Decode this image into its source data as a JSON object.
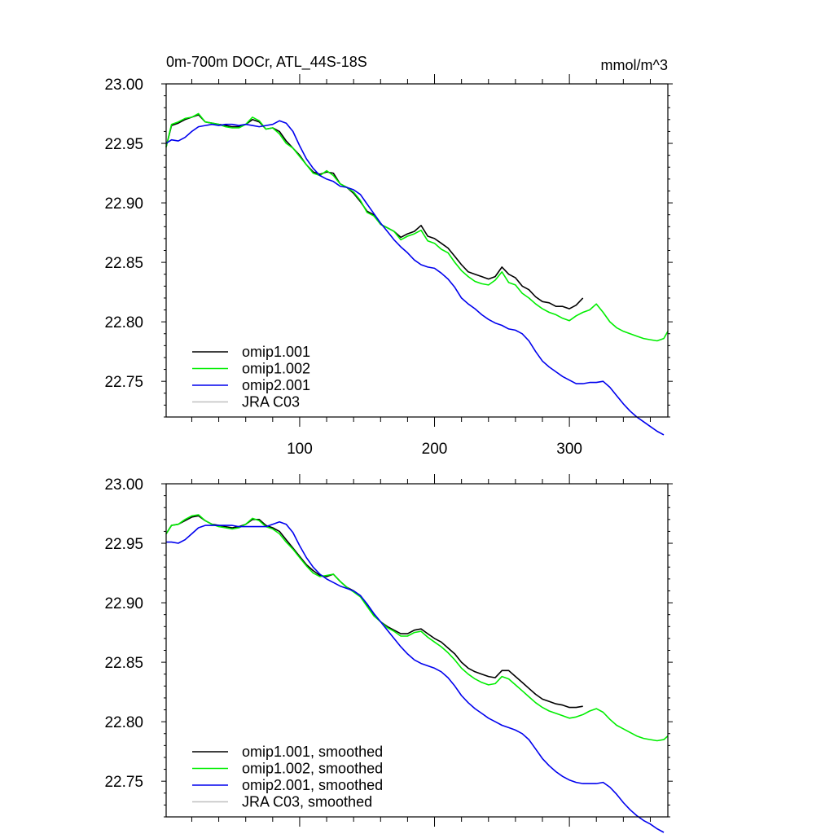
{
  "chart_data": [
    {
      "type": "line",
      "title": "0m-700m DOCr, ATL_44S-18S",
      "units": "mmol/m^3",
      "xlim": [
        1,
        373
      ],
      "ylim": [
        22.72,
        23.0
      ],
      "xticks": [
        100,
        200,
        300
      ],
      "yticks": [
        22.75,
        22.8,
        22.85,
        22.9,
        22.95,
        23.0
      ],
      "ytick_labels": [
        "22.75",
        "22.80",
        "22.85",
        "22.90",
        "22.95",
        "23.00"
      ],
      "xtick_labels": [
        "100",
        "200",
        "300"
      ],
      "legend_position": "bottom-left",
      "series": [
        {
          "name": "omip1.001",
          "color": "#000000",
          "x": [
            1,
            5,
            10,
            15,
            20,
            25,
            30,
            35,
            40,
            45,
            50,
            55,
            60,
            65,
            70,
            75,
            80,
            85,
            90,
            95,
            100,
            105,
            110,
            115,
            120,
            125,
            130,
            135,
            140,
            145,
            150,
            155,
            160,
            165,
            170,
            175,
            180,
            185,
            190,
            195,
            200,
            205,
            210,
            215,
            220,
            225,
            230,
            235,
            240,
            245,
            250,
            255,
            260,
            265,
            270,
            275,
            280,
            285,
            290,
            295,
            300,
            305,
            310
          ],
          "y": [
            22.947,
            22.965,
            22.967,
            22.97,
            22.972,
            22.974,
            22.968,
            22.967,
            22.966,
            22.965,
            22.964,
            22.964,
            22.966,
            22.97,
            22.968,
            22.962,
            22.963,
            22.96,
            22.952,
            22.946,
            22.94,
            22.932,
            22.926,
            22.924,
            22.926,
            22.925,
            22.916,
            22.913,
            22.908,
            22.901,
            22.893,
            22.89,
            22.882,
            22.879,
            22.876,
            22.871,
            22.874,
            22.876,
            22.881,
            22.872,
            22.87,
            22.866,
            22.862,
            22.855,
            22.848,
            22.842,
            22.84,
            22.838,
            22.836,
            22.838,
            22.846,
            22.84,
            22.837,
            22.83,
            22.827,
            22.821,
            22.817,
            22.816,
            22.813,
            22.813,
            22.811,
            22.814,
            22.82
          ]
        },
        {
          "name": "omip1.002",
          "color": "#00ee00",
          "x": [
            1,
            5,
            10,
            15,
            20,
            25,
            30,
            35,
            40,
            45,
            50,
            55,
            60,
            65,
            70,
            75,
            80,
            85,
            90,
            95,
            100,
            105,
            110,
            115,
            120,
            125,
            130,
            135,
            140,
            145,
            150,
            155,
            160,
            165,
            170,
            175,
            180,
            185,
            190,
            195,
            200,
            205,
            210,
            215,
            220,
            225,
            230,
            235,
            240,
            245,
            250,
            255,
            260,
            265,
            270,
            275,
            280,
            285,
            290,
            295,
            300,
            305,
            310,
            315,
            320,
            325,
            330,
            335,
            340,
            345,
            350,
            355,
            360,
            365,
            370,
            373
          ],
          "y": [
            22.947,
            22.966,
            22.968,
            22.971,
            22.972,
            22.975,
            22.968,
            22.967,
            22.966,
            22.964,
            22.963,
            22.963,
            22.966,
            22.972,
            22.969,
            22.962,
            22.963,
            22.958,
            22.95,
            22.946,
            22.939,
            22.932,
            22.925,
            22.923,
            22.927,
            22.923,
            22.916,
            22.913,
            22.909,
            22.902,
            22.892,
            22.889,
            22.882,
            22.879,
            22.876,
            22.869,
            22.872,
            22.874,
            22.877,
            22.868,
            22.866,
            22.861,
            22.858,
            22.85,
            22.843,
            22.838,
            22.834,
            22.832,
            22.831,
            22.835,
            22.842,
            22.833,
            22.831,
            22.824,
            22.82,
            22.815,
            22.811,
            22.808,
            22.806,
            22.803,
            22.801,
            22.805,
            22.808,
            22.81,
            22.815,
            22.808,
            22.8,
            22.795,
            22.792,
            22.79,
            22.788,
            22.786,
            22.785,
            22.784,
            22.786,
            22.792
          ]
        },
        {
          "name": "omip2.001",
          "color": "#0000ee",
          "x": [
            1,
            5,
            10,
            15,
            20,
            25,
            30,
            35,
            40,
            45,
            50,
            55,
            60,
            65,
            70,
            75,
            80,
            85,
            90,
            95,
            100,
            105,
            110,
            115,
            120,
            125,
            130,
            135,
            140,
            145,
            150,
            155,
            160,
            165,
            170,
            175,
            180,
            185,
            190,
            195,
            200,
            205,
            210,
            215,
            220,
            225,
            230,
            235,
            240,
            245,
            250,
            255,
            260,
            265,
            270,
            275,
            280,
            285,
            290,
            295,
            300,
            305,
            310,
            315,
            320,
            325,
            330,
            335,
            340,
            345,
            350,
            355,
            360,
            365,
            370
          ],
          "y": [
            22.95,
            22.953,
            22.952,
            22.955,
            22.96,
            22.964,
            22.965,
            22.966,
            22.965,
            22.966,
            22.966,
            22.965,
            22.966,
            22.965,
            22.964,
            22.965,
            22.966,
            22.969,
            22.967,
            22.96,
            22.948,
            22.937,
            22.929,
            22.923,
            22.92,
            22.918,
            22.914,
            22.913,
            22.911,
            22.907,
            22.899,
            22.891,
            22.883,
            22.876,
            22.869,
            22.863,
            22.858,
            22.852,
            22.848,
            22.846,
            22.845,
            22.841,
            22.836,
            22.829,
            22.82,
            22.815,
            22.811,
            22.806,
            22.802,
            22.799,
            22.797,
            22.794,
            22.793,
            22.79,
            22.784,
            22.775,
            22.767,
            22.762,
            22.758,
            22.754,
            22.751,
            22.748,
            22.748,
            22.749,
            22.749,
            22.75,
            22.745,
            22.738,
            22.731,
            22.725,
            22.72,
            22.716,
            22.712,
            22.708,
            22.705
          ]
        },
        {
          "name": "JRA C03",
          "color": "#c0c0c0",
          "x": [],
          "y": []
        }
      ]
    },
    {
      "type": "line",
      "xlim": [
        1,
        373
      ],
      "ylim": [
        22.72,
        23.0
      ],
      "xticks": [
        100,
        200,
        300
      ],
      "yticks": [
        22.75,
        22.8,
        22.85,
        22.9,
        22.95,
        23.0
      ],
      "ytick_labels": [
        "22.75",
        "22.80",
        "22.85",
        "22.90",
        "22.95",
        "23.00"
      ],
      "legend_position": "bottom-left",
      "series": [
        {
          "name": "omip1.001, smoothed",
          "color": "#000000",
          "x": [
            1,
            5,
            10,
            15,
            20,
            25,
            30,
            35,
            40,
            45,
            50,
            55,
            60,
            65,
            70,
            75,
            80,
            85,
            90,
            95,
            100,
            105,
            110,
            115,
            120,
            125,
            130,
            135,
            140,
            145,
            150,
            155,
            160,
            165,
            170,
            175,
            180,
            185,
            190,
            195,
            200,
            205,
            210,
            215,
            220,
            225,
            230,
            235,
            240,
            245,
            250,
            255,
            260,
            265,
            270,
            275,
            280,
            285,
            290,
            295,
            300,
            305,
            310
          ],
          "y": [
            22.958,
            22.965,
            22.966,
            22.969,
            22.972,
            22.973,
            22.969,
            22.966,
            22.965,
            22.964,
            22.963,
            22.964,
            22.966,
            22.97,
            22.97,
            22.965,
            22.963,
            22.96,
            22.953,
            22.946,
            22.939,
            22.932,
            22.927,
            22.923,
            22.922,
            22.924,
            22.918,
            22.913,
            22.91,
            22.906,
            22.898,
            22.89,
            22.884,
            22.88,
            22.877,
            22.874,
            22.874,
            22.877,
            22.878,
            22.874,
            22.87,
            22.867,
            22.862,
            22.857,
            22.85,
            22.845,
            22.842,
            22.84,
            22.838,
            22.837,
            22.843,
            22.843,
            22.838,
            22.833,
            22.828,
            22.823,
            22.819,
            22.817,
            22.815,
            22.814,
            22.812,
            22.812,
            22.813
          ]
        },
        {
          "name": "omip1.002, smoothed",
          "color": "#00ee00",
          "x": [
            1,
            5,
            10,
            15,
            20,
            25,
            30,
            35,
            40,
            45,
            50,
            55,
            60,
            65,
            70,
            75,
            80,
            85,
            90,
            95,
            100,
            105,
            110,
            115,
            120,
            125,
            130,
            135,
            140,
            145,
            150,
            155,
            160,
            165,
            170,
            175,
            180,
            185,
            190,
            195,
            200,
            205,
            210,
            215,
            220,
            225,
            230,
            235,
            240,
            245,
            250,
            255,
            260,
            265,
            270,
            275,
            280,
            285,
            290,
            295,
            300,
            305,
            310,
            315,
            320,
            325,
            330,
            335,
            340,
            345,
            350,
            355,
            360,
            365,
            370,
            373
          ],
          "y": [
            22.958,
            22.965,
            22.966,
            22.97,
            22.973,
            22.974,
            22.969,
            22.966,
            22.964,
            22.963,
            22.962,
            22.963,
            22.966,
            22.971,
            22.969,
            22.964,
            22.962,
            22.958,
            22.951,
            22.945,
            22.938,
            22.931,
            22.925,
            22.922,
            22.923,
            22.924,
            22.918,
            22.913,
            22.909,
            22.905,
            22.897,
            22.889,
            22.884,
            22.879,
            22.876,
            22.872,
            22.872,
            22.875,
            22.876,
            22.871,
            22.867,
            22.863,
            22.858,
            22.852,
            22.845,
            22.84,
            22.836,
            22.833,
            22.831,
            22.832,
            22.838,
            22.836,
            22.831,
            22.826,
            22.821,
            22.816,
            22.812,
            22.809,
            22.807,
            22.805,
            22.803,
            22.804,
            22.806,
            22.809,
            22.811,
            22.808,
            22.802,
            22.797,
            22.794,
            22.791,
            22.788,
            22.786,
            22.785,
            22.784,
            22.785,
            22.788
          ]
        },
        {
          "name": "omip2.001, smoothed",
          "color": "#0000ee",
          "x": [
            1,
            5,
            10,
            15,
            20,
            25,
            30,
            35,
            40,
            45,
            50,
            55,
            60,
            65,
            70,
            75,
            80,
            85,
            90,
            95,
            100,
            105,
            110,
            115,
            120,
            125,
            130,
            135,
            140,
            145,
            150,
            155,
            160,
            165,
            170,
            175,
            180,
            185,
            190,
            195,
            200,
            205,
            210,
            215,
            220,
            225,
            230,
            235,
            240,
            245,
            250,
            255,
            260,
            265,
            270,
            275,
            280,
            285,
            290,
            295,
            300,
            305,
            310,
            315,
            320,
            325,
            330,
            335,
            340,
            345,
            350,
            355,
            360,
            365,
            370
          ],
          "y": [
            22.951,
            22.951,
            22.95,
            22.953,
            22.958,
            22.963,
            22.965,
            22.965,
            22.965,
            22.965,
            22.965,
            22.964,
            22.964,
            22.964,
            22.964,
            22.964,
            22.966,
            22.968,
            22.966,
            22.959,
            22.948,
            22.938,
            22.93,
            22.924,
            22.92,
            22.917,
            22.914,
            22.912,
            22.91,
            22.906,
            22.899,
            22.891,
            22.884,
            22.877,
            22.87,
            22.863,
            22.857,
            22.852,
            22.849,
            22.847,
            22.845,
            22.842,
            22.837,
            22.83,
            22.822,
            22.816,
            22.811,
            22.807,
            22.803,
            22.8,
            22.797,
            22.795,
            22.793,
            22.79,
            22.785,
            22.777,
            22.769,
            22.763,
            22.758,
            22.754,
            22.751,
            22.749,
            22.748,
            22.748,
            22.748,
            22.749,
            22.745,
            22.739,
            22.732,
            22.726,
            22.721,
            22.717,
            22.714,
            22.71,
            22.707
          ]
        },
        {
          "name": "JRA C03, smoothed",
          "color": "#c0c0c0",
          "x": [],
          "y": []
        }
      ]
    }
  ]
}
